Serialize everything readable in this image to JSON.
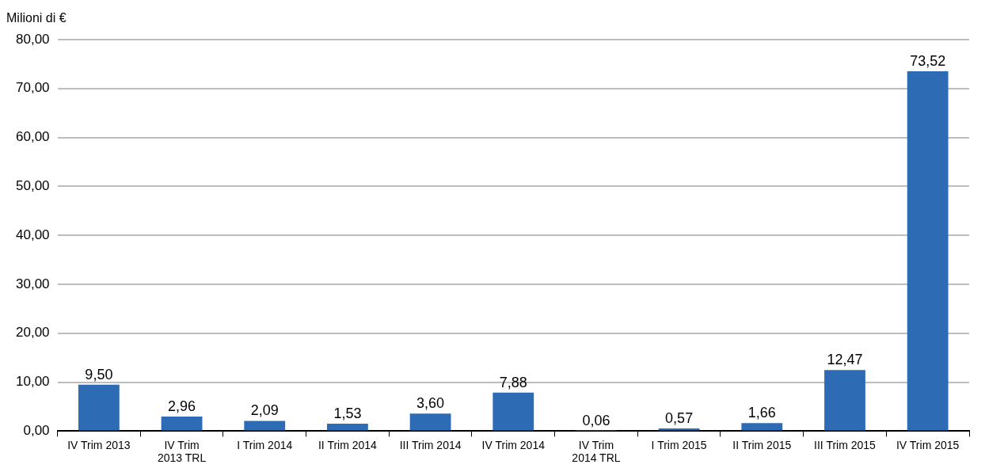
{
  "chart_data": {
    "type": "bar",
    "ylabel": "Milioni di €",
    "categories": [
      "IV Trim 2013",
      "IV Trim 2013 TRL",
      "I Trim 2014",
      "II Trim 2014",
      "III Trim 2014",
      "IV Trim 2014",
      "IV Trim 2014 TRL",
      "I Trim 2015",
      "II Trim 2015",
      "III Trim 2015",
      "IV Trim 2015"
    ],
    "values": [
      9.5,
      2.96,
      2.09,
      1.53,
      3.6,
      7.88,
      0.06,
      0.57,
      1.66,
      12.47,
      73.52
    ],
    "value_labels": [
      "9,50",
      "2,96",
      "2,09",
      "1,53",
      "3,60",
      "7,88",
      "0,06",
      "0,57",
      "1,66",
      "12,47",
      "73,52"
    ],
    "color": "#2e6bb5",
    "ylim": [
      0,
      80
    ],
    "yticks": [
      {
        "value": 0,
        "label": "0,00"
      },
      {
        "value": 10,
        "label": "10,00"
      },
      {
        "value": 20,
        "label": "20,00"
      },
      {
        "value": 30,
        "label": "30,00"
      },
      {
        "value": 40,
        "label": "40,00"
      },
      {
        "value": 50,
        "label": "50,00"
      },
      {
        "value": 60,
        "label": "60,00"
      },
      {
        "value": 70,
        "label": "70,00"
      },
      {
        "value": 80,
        "label": "80,00"
      }
    ],
    "grid": "y",
    "legend": false
  }
}
